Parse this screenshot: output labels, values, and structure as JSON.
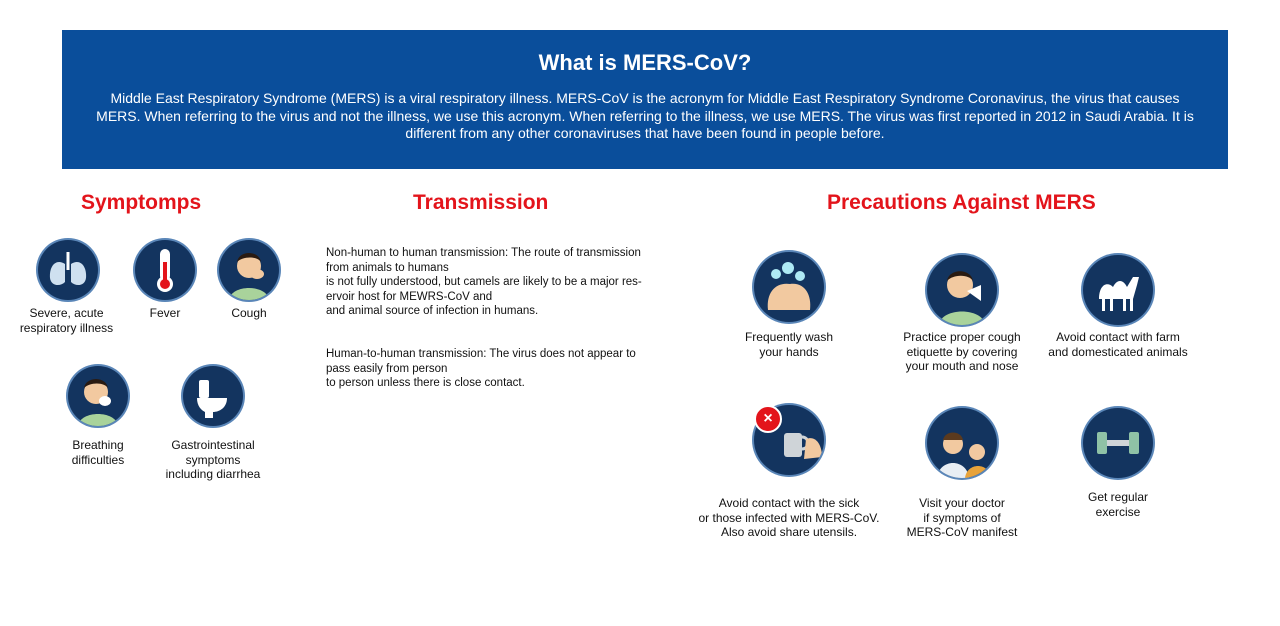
{
  "banner": {
    "title": "What is MERS-CoV?",
    "text": "Middle East Respiratory Syndrome (MERS) is a viral respiratory illness. MERS-CoV is the acronym for Middle East Respiratory Syndrome Coronavirus, the virus that causes MERS. When referring to the virus and not the illness, we use this acronym. When referring to the illness, we use MERS. The virus was first reported in 2012 in Saudi Arabia. It is different from any other coronaviruses that have been found in people before."
  },
  "symptoms": {
    "heading": "Symptomps",
    "items": [
      {
        "lines": [
          "Severe, acute",
          "respiratory illness"
        ],
        "icon": "lungs-icon"
      },
      {
        "lines": [
          "Fever"
        ],
        "icon": "thermometer-icon"
      },
      {
        "lines": [
          "Cough"
        ],
        "icon": "coughing-person-icon"
      },
      {
        "lines": [
          "Breathing",
          "difficulties"
        ],
        "icon": "breathing-difficulty-icon"
      },
      {
        "lines": [
          "Gastrointestinal",
          "symptoms",
          "including diarrhea"
        ],
        "icon": "toilet-icon"
      }
    ]
  },
  "transmission": {
    "heading": "Transmission",
    "para1": [
      "Non-human to human transmission: The route of transmission",
      "from animals to humans",
      "is not fully understood, but camels are likely to be a major res-",
      "ervoir host for MEWRS-CoV and",
      "and animal source of infection in humans."
    ],
    "para2": [
      "Human-to-human transmission: The virus does not appear to",
      "pass easily from person",
      "to person unless there is close contact."
    ]
  },
  "precautions": {
    "heading": "Precautions Against MERS",
    "items": [
      {
        "lines": [
          "Frequently wash",
          "your hands"
        ],
        "icon": "hand-washing-icon"
      },
      {
        "lines": [
          "Practice proper cough",
          "etiquette by covering",
          "your mouth and nose"
        ],
        "icon": "cover-cough-icon"
      },
      {
        "lines": [
          "Avoid contact with farm",
          "and domesticated animals"
        ],
        "icon": "camel-icon"
      },
      {
        "lines": [
          "Avoid contact with the sick",
          "or those infected with MERS-CoV.",
          "Also avoid share utensils."
        ],
        "icon": "no-shared-cup-icon"
      },
      {
        "lines": [
          "Visit your doctor",
          "if symptoms of",
          "MERS-CoV manifest"
        ],
        "icon": "doctor-icon"
      },
      {
        "lines": [
          "Get regular",
          "exercise"
        ],
        "icon": "dumbbell-icon"
      }
    ]
  },
  "colors": {
    "banner": "#0a4e9b",
    "heading": "#e3141b",
    "icon_bg": "#13345f"
  }
}
